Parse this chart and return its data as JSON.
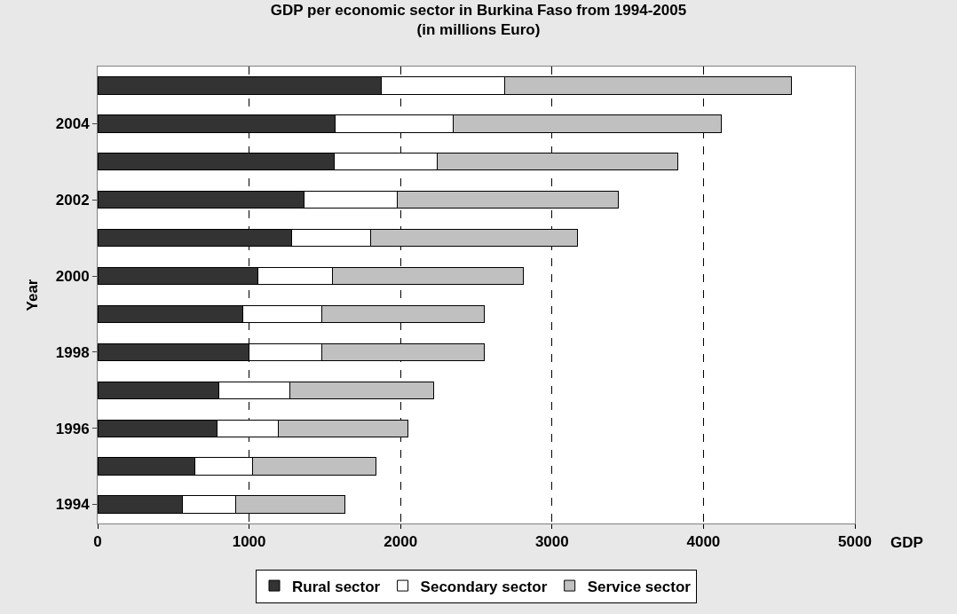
{
  "chart_data": {
    "type": "bar",
    "orientation": "horizontal",
    "stacked": true,
    "title": "GDP per economic sector in Burkina Faso from 1994-2005",
    "subtitle": "(in millions Euro)",
    "xlabel": "GDP",
    "ylabel": "Year",
    "categories": [
      null,
      "2004",
      null,
      "2002",
      null,
      "2000",
      null,
      "1998",
      null,
      "1996",
      null,
      "1994"
    ],
    "series": [
      {
        "name": "Rural sector",
        "color": "#333333",
        "values": [
          1870,
          1570,
          1560,
          1360,
          1280,
          1060,
          960,
          1000,
          800,
          790,
          640,
          560
        ]
      },
      {
        "name": "Secondary sector",
        "color": "#ffffff",
        "values": [
          820,
          780,
          680,
          620,
          520,
          490,
          520,
          480,
          470,
          400,
          380,
          350
        ]
      },
      {
        "name": "Service sector",
        "color": "#c0c0c0",
        "values": [
          1890,
          1770,
          1590,
          1460,
          1370,
          1260,
          1070,
          1070,
          950,
          860,
          820,
          720
        ]
      }
    ],
    "xlim": [
      0,
      5000
    ],
    "xticks": [
      0,
      1000,
      2000,
      3000,
      4000,
      5000
    ],
    "grid": "x",
    "legend": "bottom"
  }
}
